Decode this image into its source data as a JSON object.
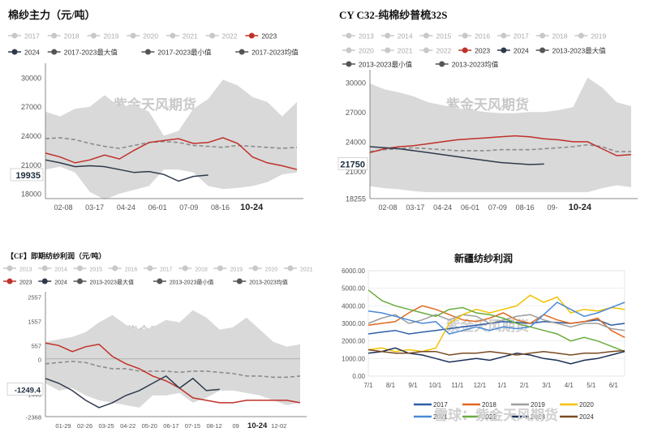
{
  "colors": {
    "band": "#d9d9d9",
    "y2023": "#c0302a",
    "y2024": "#2e3a4a",
    "avg": "#8c8c8c",
    "inactive": "#c8c8c8"
  },
  "watermark": "紫金天风期货",
  "chart_data": [
    {
      "id": "p1",
      "type": "line",
      "title": "棉纱主力（元/吨）",
      "legend": [
        "2017",
        "2018",
        "2019",
        "2020",
        "2021",
        "2022",
        "2023",
        "2024",
        "2017-2023最大值",
        "2017-2023最小值",
        "2017-2023均值"
      ],
      "legend_active": [
        "2023",
        "2024",
        "2017-2023最大值",
        "2017-2023最小值",
        "2017-2023均值"
      ],
      "yticks": [
        "30000",
        "27000",
        "24000",
        "21000",
        "18000"
      ],
      "ylim": [
        17500,
        31000
      ],
      "xticks": [
        "02-08",
        "03-17",
        "04-24",
        "06-01",
        "07-09",
        "08-16",
        "10-24"
      ],
      "xtick_bold": "10-24",
      "last_value_label": "19935",
      "series": [
        {
          "name": "2017-2023最大值",
          "kind": "max",
          "values": [
            26500,
            26000,
            26800,
            27000,
            28200,
            27000,
            27200,
            26500,
            24000,
            24500,
            26800,
            27800,
            29800,
            29200,
            28000,
            27500,
            26000,
            27500
          ]
        },
        {
          "name": "2017-2023最小值",
          "kind": "min",
          "values": [
            20500,
            20800,
            20200,
            18200,
            17400,
            18000,
            18400,
            18800,
            20500,
            20500,
            20200,
            18800,
            18500,
            18600,
            18800,
            19200,
            20000,
            20200
          ]
        },
        {
          "name": "2017-2023均值",
          "kind": "avg",
          "values": [
            23700,
            23800,
            23600,
            23200,
            22900,
            22700,
            23000,
            23300,
            23400,
            23300,
            23000,
            22900,
            22800,
            23000,
            22900,
            22800,
            22700,
            22800
          ]
        },
        {
          "name": "2023",
          "kind": "y2023",
          "values": [
            22200,
            21800,
            21200,
            21500,
            22000,
            21600,
            22500,
            23300,
            23500,
            23700,
            23200,
            23300,
            23800,
            23200,
            21800,
            21200,
            20900,
            20500
          ]
        },
        {
          "name": "2024",
          "kind": "y2024",
          "values": [
            21500,
            21200,
            20800,
            20900,
            20800,
            20500,
            20200,
            20300,
            20000,
            19300,
            19800,
            19935
          ]
        }
      ]
    },
    {
      "id": "p2",
      "type": "line",
      "title": "CY C32-纯棉纱普梳32S",
      "legend": [
        "2013",
        "2014",
        "2015",
        "2016",
        "2017",
        "2018",
        "2019",
        "2020",
        "2021",
        "2022",
        "2023",
        "2024",
        "2013-2023最大值",
        "2013-2023最小值",
        "2013-2023均值"
      ],
      "legend_active": [
        "2023",
        "2024",
        "2013-2023最大值",
        "2013-2023最小值",
        "2013-2023均值"
      ],
      "yticks": [
        "30000",
        "27000",
        "24000",
        "21000",
        "18255"
      ],
      "ylim": [
        18255,
        30800
      ],
      "xticks": [
        "02-08",
        "03-17",
        "04-24",
        "06-01",
        "07-09",
        "08-16",
        "09-",
        "10-24"
      ],
      "xtick_bold": "10-24",
      "last_value_label": "21750",
      "series": [
        {
          "name": "2013-2023最大值",
          "kind": "max",
          "values": [
            29900,
            29300,
            29000,
            28600,
            28000,
            27700,
            27400,
            27200,
            27000,
            26900,
            26900,
            27000,
            27000,
            27200,
            27500,
            30500,
            29500,
            28000,
            27600
          ]
        },
        {
          "name": "2013-2023最小值",
          "kind": "min",
          "values": [
            19500,
            19300,
            19200,
            19000,
            18900,
            18900,
            18900,
            18900,
            18900,
            18900,
            18900,
            18900,
            18900,
            18900,
            18900,
            18900,
            19300,
            19600,
            19400
          ]
        },
        {
          "name": "2013-2023均值",
          "kind": "avg",
          "values": [
            23000,
            23200,
            23300,
            23400,
            23300,
            23200,
            23100,
            23100,
            23100,
            23200,
            23200,
            23200,
            23300,
            23400,
            23500,
            23700,
            23500,
            23000,
            23000
          ]
        },
        {
          "name": "2023",
          "kind": "y2023",
          "values": [
            22900,
            23300,
            23500,
            23600,
            23800,
            24000,
            24200,
            24300,
            24400,
            24500,
            24600,
            24500,
            24300,
            24200,
            24000,
            24000,
            23300,
            22600,
            22700
          ]
        },
        {
          "name": "2024",
          "kind": "y2024",
          "values": [
            23500,
            23400,
            23300,
            23100,
            22900,
            22700,
            22500,
            22300,
            22100,
            21900,
            21800,
            21700,
            21750
          ]
        }
      ]
    },
    {
      "id": "p3",
      "type": "line",
      "title": "【CF】即期纺纱利润（元/吨）",
      "legend": [
        "2013",
        "2014",
        "2015",
        "2016",
        "2017",
        "2018",
        "2019",
        "2020",
        "2021",
        "2022",
        "2023",
        "2024",
        "2013-2023最大值",
        "2013-2023最小值",
        "2013-2023均值"
      ],
      "legend_active": [
        "2023",
        "2024",
        "2013-2023最大值",
        "2013-2023最小值",
        "2013-2023均值"
      ],
      "yticks": [
        "2557",
        "1557",
        "557",
        "0",
        "-1443",
        "-2368"
      ],
      "ylim": [
        -2368,
        2557
      ],
      "xticks": [
        "01-29",
        "02-26",
        "03-25",
        "04-22",
        "05-20",
        "06-17",
        "07-15",
        "08-12",
        "09",
        "10-24",
        "12-02"
      ],
      "xtick_bold": "10-24",
      "last_value_label": "-1249.4",
      "series": [
        {
          "name": "2013-2023最大值",
          "kind": "max",
          "values": [
            700,
            800,
            900,
            1100,
            1500,
            1800,
            1400,
            1200,
            1300,
            1600,
            1500,
            2000,
            1700,
            1200,
            1300,
            1700,
            1200,
            700,
            500,
            600
          ]
        },
        {
          "name": "2013-2023最小值",
          "kind": "min",
          "values": [
            -1000,
            -1300,
            -1200,
            -1500,
            -1700,
            -1800,
            -1900,
            -2000,
            -1500,
            -1500,
            -1400,
            -1800,
            -1600,
            -1300,
            -1300,
            -1400,
            -1500,
            -1700,
            -1900,
            -1800
          ]
        },
        {
          "name": "2013-2023均值",
          "kind": "avg",
          "values": [
            -200,
            -150,
            -100,
            -150,
            -300,
            -400,
            -400,
            -500,
            -500,
            -500,
            -550,
            -500,
            -500,
            -550,
            -600,
            -700,
            -700,
            -750,
            -750,
            -700
          ]
        },
        {
          "name": "2023",
          "kind": "y2023",
          "values": [
            650,
            550,
            300,
            500,
            600,
            100,
            -200,
            -400,
            -700,
            -900,
            -1200,
            -1600,
            -1700,
            -1800,
            -1800,
            -1700,
            -1700,
            -1700,
            -1700,
            -1800
          ]
        },
        {
          "name": "2024",
          "kind": "y2024",
          "values": [
            -800,
            -1000,
            -1300,
            -1700,
            -2000,
            -1800,
            -1500,
            -1300,
            -1000,
            -700,
            -1200,
            -800,
            -1300,
            -1249.4
          ]
        }
      ]
    },
    {
      "id": "p4",
      "type": "line",
      "title": "新疆纺纱利润",
      "yticks": [
        "6000.00",
        "5000.00",
        "4000.00",
        "3000.00",
        "2000.00",
        "1000.00",
        "0.00"
      ],
      "ylim": [
        0,
        6000
      ],
      "xticks": [
        "7/1",
        "8/1",
        "9/1",
        "10/1",
        "11/1",
        "12/1",
        "1/1",
        "2/1",
        "3/1",
        "4/1",
        "5/1",
        "6/1"
      ],
      "bottom_text": "雪球：紫金天风期货",
      "legend": [
        "2017",
        "2018",
        "2019",
        "2020",
        "2021",
        "2022",
        "2023",
        "2024"
      ],
      "series": [
        {
          "name": "2017",
          "color": "#2e5fa8",
          "values": [
            2400,
            2500,
            2600,
            2400,
            2500,
            2600,
            2700,
            2800,
            2900,
            3000,
            3100,
            3050,
            3000,
            3100,
            3050,
            3000,
            3100,
            3200,
            2900,
            3000
          ]
        },
        {
          "name": "2018",
          "color": "#e06a20",
          "values": [
            2900,
            3000,
            3100,
            3600,
            4000,
            3800,
            3500,
            3200,
            3100,
            3300,
            3600,
            3200,
            3000,
            3500,
            3200,
            3000,
            3100,
            3300,
            2600,
            2200
          ]
        },
        {
          "name": "2019",
          "color": "#9e9e9e",
          "values": [
            3000,
            3300,
            3500,
            3000,
            3200,
            3500,
            3200,
            3500,
            3400,
            3000,
            3200,
            3400,
            3500,
            3200,
            3000,
            2800,
            3000,
            3000,
            2700,
            2600
          ]
        },
        {
          "name": "2020",
          "color": "#f2c200",
          "values": [
            1500,
            1600,
            1400,
            1500,
            1400,
            1600,
            3000,
            3500,
            3800,
            3600,
            3800,
            4000,
            4600,
            4200,
            4500,
            3600,
            3800,
            3700,
            3900,
            3800
          ]
        },
        {
          "name": "2021",
          "color": "#4a89d6",
          "values": [
            3700,
            3600,
            3400,
            3200,
            3000,
            3100,
            2400,
            2600,
            2800,
            2600,
            2800,
            2700,
            2800,
            3500,
            4200,
            3800,
            3400,
            3600,
            3900,
            4200
          ]
        },
        {
          "name": "2022",
          "color": "#6aab3e",
          "values": [
            4900,
            4300,
            4000,
            3800,
            3600,
            3400,
            3800,
            3900,
            3600,
            3500,
            3300,
            3000,
            2800,
            2600,
            2400,
            2000,
            2200,
            2000,
            1700,
            1400
          ]
        },
        {
          "name": "2023",
          "color": "#1b2f57",
          "values": [
            1300,
            1400,
            1600,
            1300,
            1200,
            1000,
            800,
            900,
            1000,
            900,
            1100,
            1300,
            1200,
            1000,
            900,
            700,
            900,
            1000,
            1200,
            1400
          ]
        },
        {
          "name": "2024",
          "color": "#7a4a22",
          "values": [
            1500,
            1400,
            1300,
            1300,
            1400,
            1400,
            1200,
            1300,
            1300,
            1400,
            1300,
            1200,
            1300,
            1400,
            1300,
            1200,
            1300,
            1300,
            1400,
            1450
          ]
        }
      ]
    }
  ]
}
